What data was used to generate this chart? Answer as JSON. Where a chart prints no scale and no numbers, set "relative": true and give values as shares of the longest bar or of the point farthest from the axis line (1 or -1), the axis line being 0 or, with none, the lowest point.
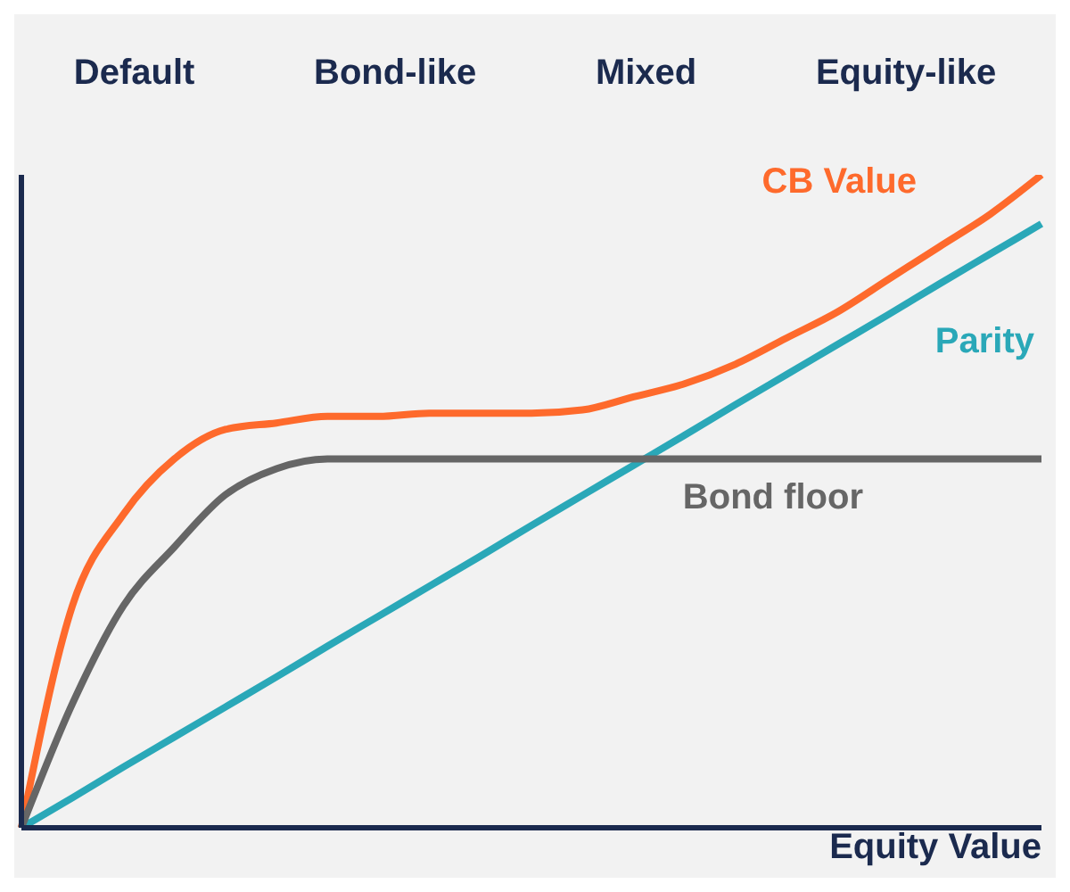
{
  "chart_data": {
    "type": "line",
    "relative": true,
    "xlabel": "Equity Value",
    "annotations": [
      "Default",
      "Bond-like",
      "Mixed",
      "Equity-like"
    ],
    "categories": [
      null,
      null,
      null,
      null,
      null,
      null,
      null,
      null,
      null,
      null,
      null,
      null,
      null,
      null,
      null,
      null,
      null,
      null,
      null,
      null,
      null
    ],
    "series": [
      {
        "name": "CB Value",
        "color": "#fe6a2c",
        "values": [
          0,
          0.34,
          0.48,
          0.565,
          0.61,
          0.62,
          0.63,
          0.63,
          0.635,
          0.635,
          0.635,
          0.64,
          0.66,
          0.68,
          0.71,
          0.75,
          0.79,
          0.84,
          0.89,
          0.94,
          1
        ]
      },
      {
        "name": "Parity",
        "color": "#2aa8b8",
        "values": [
          0,
          0.046,
          0.093,
          0.139,
          0.185,
          0.231,
          0.278,
          0.324,
          0.37,
          0.416,
          0.463,
          0.509,
          0.555,
          0.601,
          0.648,
          0.694,
          0.74,
          0.786,
          0.833,
          0.879,
          0.925
        ]
      },
      {
        "name": "Bond floor",
        "color": "#666666",
        "values": [
          0,
          0.19,
          0.34,
          0.43,
          0.51,
          0.55,
          0.565,
          0.565,
          0.565,
          0.565,
          0.565,
          0.565,
          0.565,
          0.565,
          0.565,
          0.565,
          0.565,
          0.565,
          0.565,
          0.565,
          0.565
        ]
      }
    ],
    "legend": false,
    "grid": false,
    "marker": "none",
    "line_style": "solid"
  }
}
